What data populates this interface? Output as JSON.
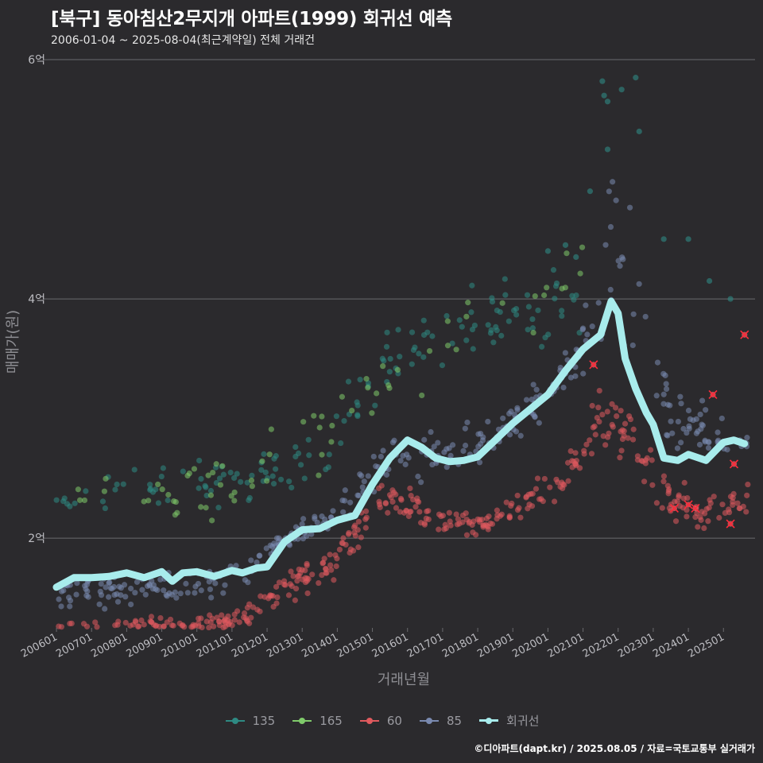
{
  "title": "[북구] 동아침산2무지개 아파트(1999) 회귀선 예측",
  "subtitle": "2006-01-04 ~ 2025-08-04(최근계약일) 전체 거래건",
  "caption": "©디아파트(dapt.kr) / 2025.08.05 / 자료=국토교통부 실거래가",
  "colors": {
    "background": "#2b2a2d",
    "grid": "#6a6a6e",
    "tick_text": "#bdbdc2",
    "axis_title": "#8e8e93",
    "s135": "#2e8a83",
    "s165": "#7fca6a",
    "s60": "#e05a5e",
    "s85": "#7a8ab0",
    "regression": "#a8ecec",
    "cancel_mark": "#ff2a3a"
  },
  "chart_data": {
    "type": "scatter",
    "xlabel": "거래년월",
    "ylabel": "매매가(원)",
    "xlim": [
      "2006-01",
      "2025-12"
    ],
    "ylim_eok": [
      1.25,
      6.1
    ],
    "y_ticks": [
      {
        "value": 2,
        "label": "2억"
      },
      {
        "value": 4,
        "label": "4억"
      },
      {
        "value": 6,
        "label": "6억"
      }
    ],
    "x_ticks": [
      "200601",
      "200701",
      "200801",
      "200901",
      "201001",
      "201101",
      "201201",
      "201301",
      "201401",
      "201501",
      "201601",
      "201701",
      "201801",
      "201901",
      "202001",
      "202101",
      "202201",
      "202301",
      "202401",
      "202501"
    ],
    "legend_position": "bottom",
    "legend": [
      "135",
      "165",
      "60",
      "85",
      "회귀선"
    ],
    "series": [
      {
        "name": "135",
        "color_key": "s135",
        "bands": [
          [
            2006.0,
            2.35,
            0.2
          ],
          [
            2008.0,
            2.4,
            0.2
          ],
          [
            2010.0,
            2.4,
            0.2
          ],
          [
            2012.0,
            2.5,
            0.22
          ],
          [
            2013.5,
            2.7,
            0.25
          ],
          [
            2015.5,
            3.5,
            0.2
          ],
          [
            2017.0,
            3.7,
            0.2
          ],
          [
            2019.0,
            3.9,
            0.25
          ],
          [
            2020.5,
            4.0,
            0.3
          ]
        ],
        "count": 150
      },
      {
        "name": "165",
        "color_key": "s165",
        "bands": [
          [
            2006.5,
            2.4,
            0.2
          ],
          [
            2009.0,
            2.3,
            0.2
          ],
          [
            2011.0,
            2.4,
            0.2
          ],
          [
            2013.0,
            2.75,
            0.25
          ],
          [
            2014.5,
            3.1,
            0.3
          ],
          [
            2017.5,
            3.7,
            0.3
          ],
          [
            2019.5,
            4.0,
            0.3
          ],
          [
            2020.8,
            4.3,
            0.2
          ]
        ],
        "count": 70
      },
      {
        "name": "60",
        "color_key": "s60",
        "bands": [
          [
            2006.0,
            1.2,
            0.07
          ],
          [
            2008.0,
            1.25,
            0.08
          ],
          [
            2010.0,
            1.25,
            0.07
          ],
          [
            2011.5,
            1.35,
            0.09
          ],
          [
            2012.5,
            1.6,
            0.1
          ],
          [
            2014.0,
            1.8,
            0.1
          ],
          [
            2015.3,
            2.4,
            0.15
          ],
          [
            2016.5,
            2.2,
            0.15
          ],
          [
            2018.0,
            2.1,
            0.1
          ],
          [
            2019.5,
            2.35,
            0.1
          ],
          [
            2020.5,
            2.5,
            0.1
          ],
          [
            2021.5,
            3.0,
            0.25
          ],
          [
            2022.3,
            2.85,
            0.2
          ],
          [
            2023.5,
            2.3,
            0.15
          ],
          [
            2024.5,
            2.2,
            0.15
          ],
          [
            2025.3,
            2.3,
            0.1
          ]
        ],
        "count": 480
      },
      {
        "name": "85",
        "color_key": "s85",
        "bands": [
          [
            2006.0,
            1.55,
            0.1
          ],
          [
            2008.0,
            1.55,
            0.12
          ],
          [
            2010.0,
            1.6,
            0.12
          ],
          [
            2011.5,
            1.75,
            0.1
          ],
          [
            2012.5,
            2.0,
            0.08
          ],
          [
            2014.0,
            2.2,
            0.1
          ],
          [
            2015.5,
            2.7,
            0.15
          ],
          [
            2017.0,
            2.7,
            0.15
          ],
          [
            2018.5,
            2.85,
            0.15
          ],
          [
            2020.0,
            3.2,
            0.15
          ],
          [
            2021.5,
            3.8,
            0.3
          ],
          [
            2021.8,
            4.5,
            0.6
          ],
          [
            2022.5,
            4.0,
            0.4
          ],
          [
            2023.5,
            3.0,
            0.2
          ],
          [
            2024.5,
            2.9,
            0.2
          ],
          [
            2025.3,
            2.8,
            0.1
          ]
        ],
        "count": 360
      },
      {
        "name": "135 peak",
        "color_key": "s135",
        "points": [
          [
            2021.55,
            5.82
          ],
          [
            2021.6,
            5.7
          ],
          [
            2021.7,
            5.65
          ],
          [
            2022.1,
            5.75
          ],
          [
            2022.5,
            5.85
          ],
          [
            2022.6,
            5.4
          ],
          [
            2021.7,
            5.25
          ],
          [
            2023.3,
            4.5
          ],
          [
            2024.0,
            4.5
          ],
          [
            2021.2,
            4.9
          ],
          [
            2020.5,
            4.45
          ],
          [
            2025.2,
            4.0
          ],
          [
            2024.6,
            4.15
          ],
          [
            2020.0,
            4.4
          ],
          [
            2020.8,
            4.35
          ]
        ]
      },
      {
        "name": "회귀선",
        "color_key": "regression",
        "x": [
          2006.0,
          2006.5,
          2007.0,
          2007.5,
          2008.0,
          2008.5,
          2009.0,
          2009.3,
          2009.6,
          2010.0,
          2010.5,
          2011.0,
          2011.3,
          2011.7,
          2012.0,
          2012.5,
          2013.0,
          2013.5,
          2014.0,
          2014.5,
          2015.0,
          2015.5,
          2016.0,
          2016.4,
          2016.8,
          2017.2,
          2017.6,
          2018.0,
          2018.5,
          2019.0,
          2019.5,
          2020.0,
          2020.5,
          2021.0,
          2021.5,
          2021.8,
          2022.0,
          2022.2,
          2022.5,
          2022.8,
          2023.0,
          2023.3,
          2023.7,
          2024.0,
          2024.5,
          2025.0,
          2025.3,
          2025.6
        ],
        "y": [
          1.59,
          1.67,
          1.67,
          1.68,
          1.71,
          1.67,
          1.72,
          1.64,
          1.71,
          1.72,
          1.68,
          1.73,
          1.71,
          1.75,
          1.76,
          1.97,
          2.07,
          2.08,
          2.15,
          2.19,
          2.45,
          2.67,
          2.82,
          2.76,
          2.67,
          2.64,
          2.65,
          2.68,
          2.82,
          2.96,
          3.08,
          3.2,
          3.4,
          3.58,
          3.7,
          3.98,
          3.88,
          3.5,
          3.25,
          3.05,
          2.95,
          2.67,
          2.65,
          2.7,
          2.65,
          2.8,
          2.82,
          2.79
        ]
      },
      {
        "name": "canceled",
        "color_key": "cancel_mark",
        "points": [
          [
            2021.3,
            3.45
          ],
          [
            2023.6,
            2.25
          ],
          [
            2024.0,
            2.28
          ],
          [
            2024.2,
            2.25
          ],
          [
            2024.7,
            3.2
          ],
          [
            2025.2,
            2.12
          ],
          [
            2025.3,
            2.62
          ],
          [
            2025.6,
            3.7
          ]
        ]
      }
    ]
  }
}
